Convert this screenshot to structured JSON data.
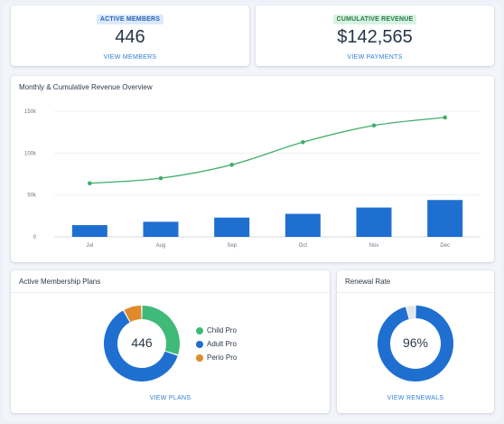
{
  "kpis": {
    "members": {
      "badge": "ACTIVE MEMBERS",
      "value": "446",
      "link": "VIEW MEMBERS"
    },
    "revenue": {
      "badge": "CUMULATIVE REVENUE",
      "value": "$142,565",
      "link": "VIEW PAYMENTS"
    }
  },
  "revenue_chart": {
    "title": "Monthly & Cumulative Revenue Overview"
  },
  "plans": {
    "title": "Active Membership Plans",
    "center": "446",
    "link": "VIEW PLANS",
    "legend": [
      {
        "label": "Child Pro",
        "color": "#3fba78"
      },
      {
        "label": "Adult Pro",
        "color": "#1f6fd1"
      },
      {
        "label": "Perio Pro",
        "color": "#e08a2c"
      }
    ]
  },
  "renewal": {
    "title": "Renewal Rate",
    "center": "96%",
    "link": "VIEW RENEWALS"
  },
  "colors": {
    "bar": "#1f6fd1",
    "line": "#3fae69",
    "renewal_fill": "#1f6fd1",
    "renewal_rest": "#e2e6ec"
  },
  "chart_data": [
    {
      "type": "bar",
      "title": "Monthly & Cumulative Revenue Overview",
      "categories": [
        "Jul",
        "Aug",
        "Sep",
        "Oct",
        "Nov",
        "Dec"
      ],
      "y_ticks": [
        "0",
        "50k",
        "100k",
        "150k"
      ],
      "ylim": [
        0,
        150000
      ],
      "grid": true,
      "series": [
        {
          "kind": "bar",
          "values": [
            14000,
            18000,
            23000,
            27500,
            35000,
            44000
          ]
        },
        {
          "kind": "line",
          "values": [
            64000,
            70000,
            86000,
            113000,
            133000,
            142565
          ]
        }
      ]
    },
    {
      "type": "pie",
      "title": "Active Membership Plans",
      "categories": [
        "Child Pro",
        "Adult Pro",
        "Perio Pro"
      ],
      "values": [
        30,
        62,
        8
      ]
    },
    {
      "type": "pie",
      "title": "Renewal Rate",
      "values": [
        96,
        4
      ]
    }
  ]
}
